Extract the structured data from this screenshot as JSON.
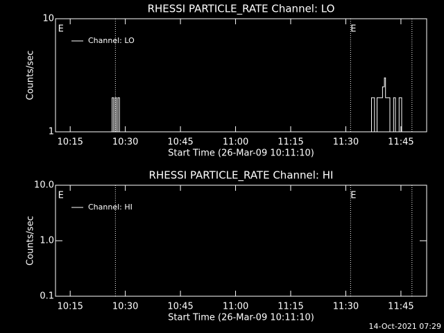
{
  "chart_data": [
    {
      "type": "line",
      "title": "RHESSI PARTICLE_RATE Channel: LO",
      "xlabel": "Start Time (26-Mar-09 10:11:10)",
      "ylabel": "Counts/sec",
      "log_y": true,
      "xlim": [
        611,
        712
      ],
      "ylim": [
        1,
        10
      ],
      "xticks": [
        {
          "value": 615,
          "label": "10:15"
        },
        {
          "value": 630,
          "label": "10:30"
        },
        {
          "value": 645,
          "label": "10:45"
        },
        {
          "value": 660,
          "label": "11:00"
        },
        {
          "value": 675,
          "label": "11:15"
        },
        {
          "value": 690,
          "label": "11:30"
        },
        {
          "value": 705,
          "label": "11:45"
        }
      ],
      "yticks": [
        1,
        10
      ],
      "vlines": [
        627.3,
        691.3,
        708
      ],
      "annotations": [
        {
          "text": "E",
          "x": 611.7
        },
        {
          "text": "E",
          "x": 691.3
        }
      ],
      "series": [
        {
          "name": "Channel: LO",
          "color": "#ffffff",
          "x": [
            611,
            626.4,
            626.4,
            626.8,
            626.8,
            627.2,
            627.2,
            627.6,
            627.6,
            628,
            628,
            628.4,
            628.4,
            697,
            697,
            697.8,
            697.8,
            698.5,
            698.5,
            700,
            700,
            700.5,
            700.5,
            700.8,
            700.8,
            702,
            702,
            703,
            703,
            703.5,
            703.5,
            704.5,
            704.5,
            705.2,
            705.2
          ],
          "values": [
            1,
            1,
            2,
            2,
            1,
            1,
            2,
            2,
            1,
            1,
            2,
            2,
            1,
            1,
            2,
            2,
            1,
            1,
            2,
            2,
            2.5,
            2.5,
            3,
            3,
            2,
            2,
            1,
            1,
            2,
            2,
            1,
            1,
            2,
            2,
            1
          ]
        }
      ]
    },
    {
      "type": "line",
      "title": "RHESSI PARTICLE_RATE Channel: HI",
      "xlabel": "Start Time (26-Mar-09 10:11:10)",
      "ylabel": "Counts/sec",
      "log_y": true,
      "xlim": [
        611,
        712
      ],
      "ylim": [
        0.1,
        10
      ],
      "xticks": [
        {
          "value": 615,
          "label": "10:15"
        },
        {
          "value": 630,
          "label": "10:30"
        },
        {
          "value": 645,
          "label": "10:45"
        },
        {
          "value": 660,
          "label": "11:00"
        },
        {
          "value": 675,
          "label": "11:15"
        },
        {
          "value": 690,
          "label": "11:30"
        },
        {
          "value": 705,
          "label": "11:45"
        }
      ],
      "yticks": [
        {
          "value": 0.1,
          "label": "0.1"
        },
        {
          "value": 1,
          "label": "1.0"
        },
        {
          "value": 10,
          "label": "10.0"
        }
      ],
      "vlines": [
        627.3,
        691.3,
        708
      ],
      "annotations": [
        {
          "text": "E",
          "x": 611.7
        },
        {
          "text": "E",
          "x": 691.3
        }
      ],
      "series": [
        {
          "name": "Channel: HI",
          "color": "#ffffff",
          "x": [],
          "values": []
        }
      ]
    }
  ],
  "footer": "14-Oct-2021 07:29"
}
